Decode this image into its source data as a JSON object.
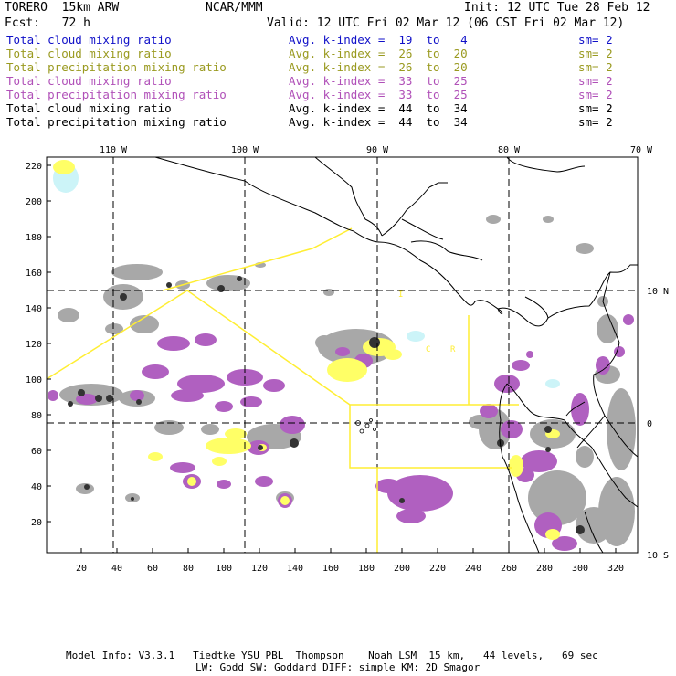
{
  "header": {
    "model": "TORERO  15km ARW",
    "center": "NCAR/MMM",
    "init": "Init: 12 UTC Tue 28 Feb 12",
    "fcst": "Fcst:   72 h",
    "valid": "Valid: 12 UTC Fri 02 Mar 12 (06 CST Fri 02 Mar 12)"
  },
  "legend": [
    {
      "field": "Total cloud mixing ratio",
      "kindex": "Avg. k-index =  19  to   4",
      "sm": "sm= 2",
      "color": "#1010c8"
    },
    {
      "field": "Total cloud mixing ratio",
      "kindex": "Avg. k-index =  26  to  20",
      "sm": "sm= 2",
      "color": "#9a9a20"
    },
    {
      "field": "Total precipitation mixing ratio",
      "kindex": "Avg. k-index =  26  to  20",
      "sm": "sm= 2",
      "color": "#9a9a20"
    },
    {
      "field": "Total cloud mixing ratio",
      "kindex": "Avg. k-index =  33  to  25",
      "sm": "sm= 2",
      "color": "#b050b8"
    },
    {
      "field": "Total precipitation mixing ratio",
      "kindex": "Avg. k-index =  33  to  25",
      "sm": "sm= 2",
      "color": "#b050b8"
    },
    {
      "field": "Total cloud mixing ratio",
      "kindex": "Avg. k-index =  44  to  34",
      "sm": "sm= 2",
      "color": "#000000"
    },
    {
      "field": "Total precipitation mixing ratio",
      "kindex": "Avg. k-index =  44  to  34",
      "sm": "sm= 2",
      "color": "#000000"
    }
  ],
  "map": {
    "top_lon_labels": [
      "110 W",
      "100 W",
      "90 W",
      "80 W",
      "70 W"
    ],
    "right_lat_labels": [
      "10 N",
      "0",
      "10 S"
    ],
    "x_ticks": [
      "20",
      "40",
      "60",
      "80",
      "100",
      "120",
      "140",
      "160",
      "180",
      "200",
      "220",
      "240",
      "260",
      "280",
      "300",
      "320"
    ],
    "y_ticks": [
      "220",
      "200",
      "180",
      "160",
      "140",
      "120",
      "100",
      "80",
      "60",
      "40",
      "20"
    ],
    "region_labels": [
      "I",
      "C",
      "R"
    ]
  },
  "footer": {
    "line1": "Model Info: V3.3.1   Tiedtke YSU PBL  Thompson    Noah LSM  15 km,   44 levels,   69 sec",
    "line2": "LW: Godd SW: Goddard DIFF: simple KM: 2D Smagor"
  },
  "colors": {
    "gray": "#a8a8a8",
    "darkgray": "#555555",
    "yellow": "#ffff66",
    "magenta": "#b060c0",
    "cyan": "#ccf4f8",
    "boxline": "#ffee33"
  }
}
